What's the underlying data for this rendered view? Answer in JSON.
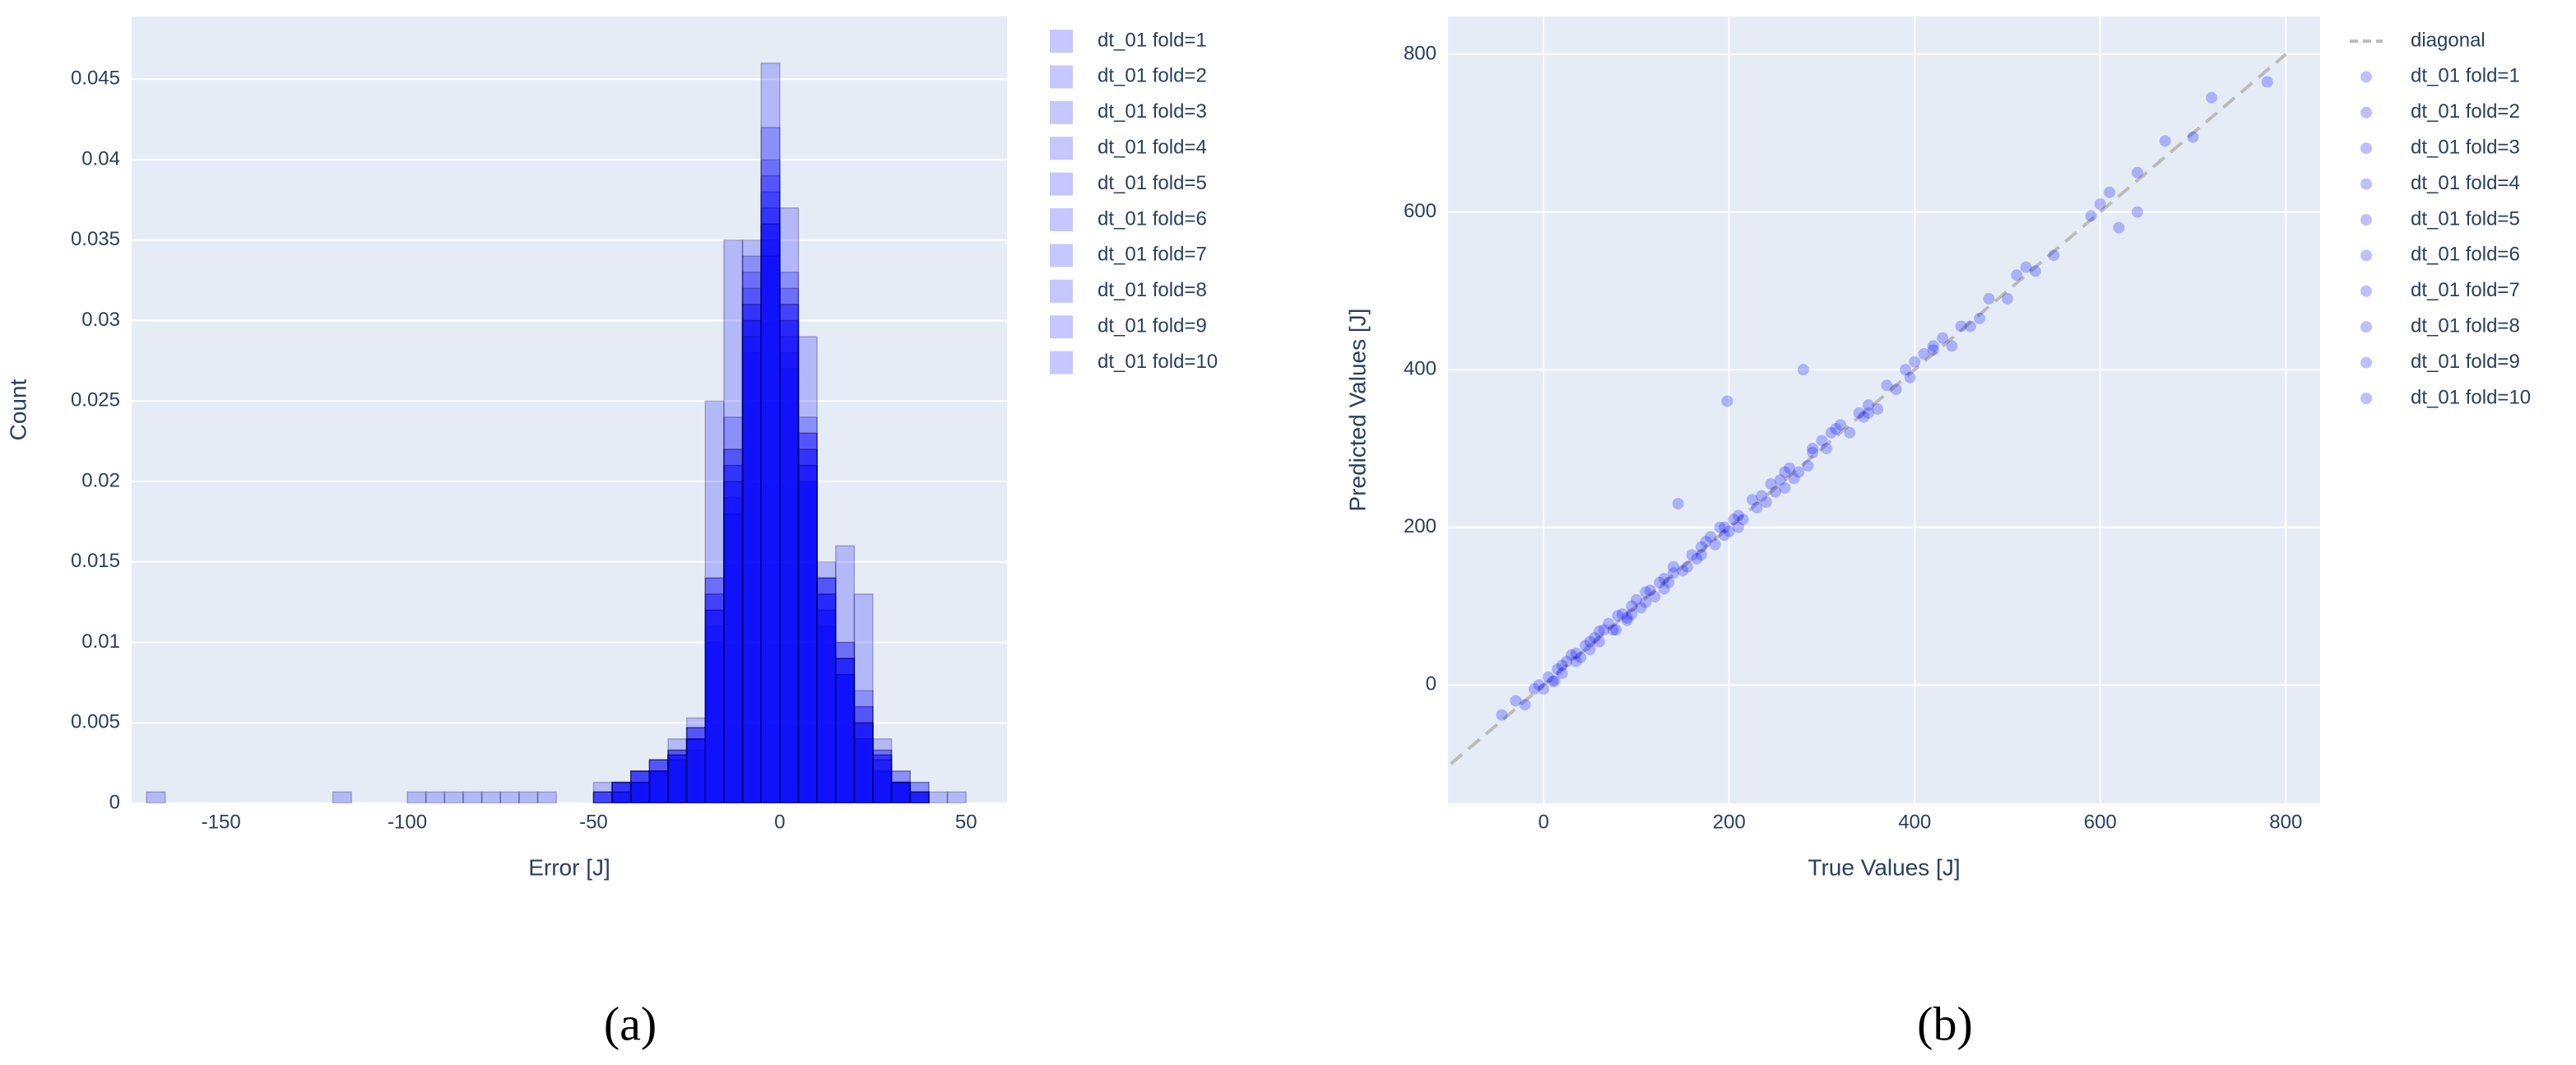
{
  "chart_data": [
    {
      "type": "histogram",
      "caption": "(a)",
      "xlabel": "Error [J]",
      "ylabel": "Count",
      "xlim": [
        -174,
        61
      ],
      "xticks": [
        -150,
        -100,
        -50,
        0,
        50
      ],
      "ylim": [
        0,
        0.0489
      ],
      "yticks": [
        0,
        0.005,
        0.01,
        0.015,
        0.02,
        0.025,
        0.03,
        0.035,
        0.04,
        0.045
      ],
      "xgrid": false,
      "ygrid": true,
      "bins": [
        -170,
        -165,
        -160,
        -155,
        -150,
        -145,
        -140,
        -135,
        -130,
        -125,
        -120,
        -115,
        -110,
        -105,
        -100,
        -95,
        -90,
        -85,
        -80,
        -75,
        -70,
        -65,
        -60,
        -55,
        -50,
        -45,
        -40,
        -35,
        -30,
        -25,
        -20,
        -15,
        -10,
        -5,
        0,
        5,
        10,
        15,
        20,
        25,
        30,
        35,
        40,
        45,
        50,
        55,
        60
      ],
      "series": [
        {
          "name": "dt_01 fold=1",
          "color": "rgba(0,0,255,0.22)",
          "values": [
            0.0007,
            0,
            0,
            0,
            0,
            0,
            0,
            0,
            0,
            0,
            0,
            0,
            0,
            0,
            0,
            0,
            0,
            0,
            0,
            0,
            0,
            0,
            0,
            0,
            0.0007,
            0.0013,
            0.0013,
            0.002,
            0.003,
            0.004,
            0.012,
            0.021,
            0.031,
            0.038,
            0.03,
            0.022,
            0.013,
            0.009,
            0.005,
            0.003,
            0.0013,
            0.0007,
            0,
            0,
            0,
            0
          ]
        },
        {
          "name": "dt_01 fold=2",
          "color": "rgba(0,0,255,0.22)",
          "values": [
            0,
            0,
            0,
            0,
            0,
            0,
            0,
            0,
            0,
            0,
            0.0007,
            0,
            0,
            0,
            0,
            0,
            0,
            0,
            0,
            0,
            0,
            0,
            0,
            0,
            0,
            0.0013,
            0.002,
            0.0027,
            0.0033,
            0.004,
            0.014,
            0.024,
            0.035,
            0.046,
            0.033,
            0.02,
            0.012,
            0.008,
            0.004,
            0.002,
            0.0013,
            0,
            0,
            0,
            0,
            0
          ]
        },
        {
          "name": "dt_01 fold=3",
          "color": "rgba(0,0,255,0.22)",
          "values": [
            0,
            0,
            0,
            0,
            0,
            0,
            0,
            0,
            0,
            0,
            0,
            0,
            0,
            0,
            0.0007,
            0.0007,
            0,
            0,
            0,
            0,
            0,
            0,
            0,
            0,
            0.0013,
            0.0007,
            0.002,
            0.002,
            0.0027,
            0.0047,
            0.01,
            0.019,
            0.028,
            0.035,
            0.037,
            0.024,
            0.014,
            0.01,
            0.006,
            0.003,
            0.0013,
            0.0007,
            0,
            0,
            0,
            0
          ]
        },
        {
          "name": "dt_01 fold=4",
          "color": "rgba(0,0,255,0.22)",
          "values": [
            0,
            0,
            0,
            0,
            0,
            0,
            0,
            0,
            0,
            0,
            0,
            0,
            0,
            0,
            0,
            0,
            0.0007,
            0.0007,
            0,
            0,
            0,
            0,
            0,
            0,
            0,
            0.0013,
            0.0013,
            0.0027,
            0.004,
            0.0053,
            0.025,
            0.022,
            0.033,
            0.04,
            0.028,
            0.021,
            0.015,
            0.016,
            0.007,
            0.0033,
            0.002,
            0.0013,
            0,
            0,
            0,
            0
          ]
        },
        {
          "name": "dt_01 fold=5",
          "color": "rgba(0,0,255,0.22)",
          "values": [
            0,
            0,
            0,
            0,
            0,
            0,
            0,
            0,
            0,
            0,
            0,
            0,
            0,
            0,
            0,
            0,
            0,
            0,
            0.0007,
            0.0007,
            0,
            0,
            0,
            0,
            0.0007,
            0,
            0.0013,
            0.002,
            0.0033,
            0.004,
            0.013,
            0.02,
            0.03,
            0.036,
            0.031,
            0.029,
            0.013,
            0.008,
            0.013,
            0.004,
            0.0013,
            0,
            0.0007,
            0,
            0,
            0
          ]
        },
        {
          "name": "dt_01 fold=6",
          "color": "rgba(0,0,255,0.22)",
          "values": [
            0,
            0,
            0,
            0,
            0,
            0,
            0,
            0,
            0,
            0,
            0,
            0,
            0,
            0,
            0,
            0,
            0,
            0,
            0,
            0,
            0.0007,
            0,
            0,
            0,
            0.0007,
            0.0013,
            0.002,
            0.002,
            0.003,
            0.0047,
            0.012,
            0.018,
            0.032,
            0.037,
            0.027,
            0.02,
            0.011,
            0.009,
            0.005,
            0.0027,
            0.0013,
            0.0007,
            0,
            0,
            0,
            0
          ]
        },
        {
          "name": "dt_01 fold=7",
          "color": "rgba(0,0,255,0.22)",
          "values": [
            0,
            0,
            0,
            0,
            0,
            0,
            0,
            0,
            0,
            0,
            0,
            0,
            0,
            0,
            0,
            0,
            0,
            0,
            0,
            0,
            0,
            0.0007,
            0,
            0,
            0,
            0.0007,
            0.002,
            0.0027,
            0.003,
            0.004,
            0.011,
            0.035,
            0.034,
            0.042,
            0.029,
            0.023,
            0.014,
            0.009,
            0.006,
            0.0033,
            0.0013,
            0.0013,
            0,
            0,
            0,
            0
          ]
        },
        {
          "name": "dt_01 fold=8",
          "color": "rgba(0,0,255,0.22)",
          "values": [
            0,
            0,
            0,
            0,
            0,
            0,
            0,
            0,
            0,
            0,
            0,
            0,
            0,
            0,
            0,
            0,
            0,
            0,
            0,
            0,
            0,
            0,
            0,
            0,
            0,
            0.0013,
            0.0013,
            0.002,
            0.0027,
            0.0033,
            0.013,
            0.021,
            0.029,
            0.034,
            0.032,
            0.022,
            0.012,
            0.01,
            0.004,
            0.002,
            0.002,
            0.0007,
            0,
            0.0007,
            0,
            0
          ]
        },
        {
          "name": "dt_01 fold=9",
          "color": "rgba(0,0,255,0.22)",
          "values": [
            0,
            0,
            0,
            0,
            0,
            0,
            0,
            0,
            0,
            0,
            0,
            0,
            0,
            0,
            0,
            0,
            0,
            0,
            0,
            0,
            0,
            0,
            0,
            0,
            0.0007,
            0.0007,
            0.0013,
            0.0027,
            0.0033,
            0.004,
            0.012,
            0.022,
            0.031,
            0.039,
            0.03,
            0.021,
            0.013,
            0.008,
            0.005,
            0.003,
            0.0013,
            0.0007,
            0,
            0,
            0,
            0
          ]
        },
        {
          "name": "dt_01 fold=10",
          "color": "rgba(0,0,255,0.22)",
          "values": [
            0,
            0,
            0,
            0,
            0,
            0,
            0,
            0,
            0,
            0,
            0,
            0,
            0,
            0,
            0,
            0,
            0,
            0,
            0,
            0,
            0,
            0,
            0,
            0,
            0,
            0.0013,
            0.002,
            0.002,
            0.003,
            0.0047,
            0.014,
            0.02,
            0.03,
            0.036,
            0.031,
            0.023,
            0.014,
            0.009,
            0.005,
            0.0027,
            0.0013,
            0.0007,
            0,
            0,
            0,
            0
          ]
        }
      ]
    },
    {
      "type": "scatter",
      "caption": "(b)",
      "xlabel": "True Values [J]",
      "ylabel": "Predicted Values [J]",
      "xlim": [
        -103,
        837
      ],
      "xticks": [
        0,
        200,
        400,
        600,
        800
      ],
      "ylim": [
        -150,
        848
      ],
      "yticks": [
        0,
        200,
        400,
        600,
        800
      ],
      "xgrid": true,
      "ygrid": true,
      "series": [
        {
          "name": "diagonal",
          "mode": "lines",
          "color": "#bbbbbb",
          "x": [
            -100,
            800
          ],
          "values": [
            -100,
            800
          ]
        },
        {
          "name": "dt_01 fold=1",
          "mode": "markers",
          "color": "rgba(0,0,255,0.25)",
          "x": [
            -45,
            12,
            35,
            78,
            110,
            150,
            190,
            240,
            290,
            350,
            420,
            780
          ],
          "values": [
            -38,
            5,
            40,
            70,
            118,
            145,
            200,
            232,
            300,
            345,
            430,
            765
          ]
        },
        {
          "name": "dt_01 fold=2",
          "mode": "markers",
          "color": "rgba(0,0,255,0.25)",
          "x": [
            -20,
            25,
            60,
            95,
            130,
            175,
            210,
            260,
            330,
            390,
            470,
            600
          ],
          "values": [
            -25,
            30,
            55,
            100,
            122,
            182,
            200,
            270,
            320,
            400,
            465,
            610
          ]
        },
        {
          "name": "dt_01 fold=3",
          "mode": "markers",
          "color": "rgba(0,0,255,0.25)",
          "x": [
            -10,
            40,
            70,
            105,
            140,
            185,
            225,
            270,
            310,
            440,
            520,
            640
          ],
          "values": [
            -5,
            35,
            78,
            98,
            150,
            178,
            235,
            262,
            320,
            430,
            530,
            600
          ]
        },
        {
          "name": "dt_01 fold=4",
          "mode": "markers",
          "color": "rgba(0,0,255,0.25)",
          "x": [
            5,
            50,
            85,
            120,
            160,
            195,
            250,
            300,
            360,
            400,
            500,
            700
          ],
          "values": [
            10,
            45,
            90,
            112,
            165,
            200,
            245,
            310,
            350,
            410,
            490,
            695
          ]
        },
        {
          "name": "dt_01 fold=5",
          "mode": "markers",
          "color": "rgba(0,0,255,0.25)",
          "x": [
            15,
            55,
            90,
            125,
            145,
            200,
            245,
            285,
            340,
            430,
            550,
            670
          ],
          "values": [
            20,
            60,
            85,
            130,
            230,
            195,
            255,
            278,
            345,
            440,
            545,
            690
          ]
        },
        {
          "name": "dt_01 fold=6",
          "mode": "markers",
          "color": "rgba(0,0,255,0.25)",
          "x": [
            -30,
            20,
            65,
            100,
            135,
            170,
            215,
            280,
            320,
            380,
            480,
            620
          ],
          "values": [
            -20,
            15,
            70,
            108,
            130,
            175,
            210,
            400,
            330,
            375,
            490,
            580
          ]
        },
        {
          "name": "dt_01 fold=7",
          "mode": "markers",
          "color": "rgba(0,0,255,0.25)",
          "x": [
            0,
            30,
            75,
            115,
            155,
            195,
            198,
            260,
            350,
            410,
            460,
            590
          ],
          "values": [
            -5,
            38,
            70,
            120,
            150,
            190,
            360,
            250,
            355,
            420,
            455,
            595
          ]
        },
        {
          "name": "dt_01 fold=8",
          "mode": "markers",
          "color": "rgba(0,0,255,0.25)",
          "x": [
            10,
            45,
            80,
            110,
            165,
            205,
            235,
            275,
            315,
            370,
            510,
            640
          ],
          "values": [
            5,
            50,
            88,
            105,
            160,
            210,
            240,
            270,
            325,
            380,
            520,
            650
          ]
        },
        {
          "name": "dt_01 fold=9",
          "mode": "markers",
          "color": "rgba(0,0,255,0.25)",
          "x": [
            -5,
            35,
            60,
            95,
            140,
            180,
            230,
            265,
            305,
            395,
            450,
            720
          ],
          "values": [
            0,
            30,
            68,
            90,
            142,
            188,
            225,
            275,
            300,
            390,
            455,
            745
          ]
        },
        {
          "name": "dt_01 fold=10",
          "mode": "markers",
          "color": "rgba(0,0,255,0.25)",
          "x": [
            20,
            50,
            90,
            130,
            170,
            210,
            255,
            290,
            345,
            420,
            530,
            610
          ],
          "values": [
            25,
            55,
            82,
            135,
            165,
            215,
            260,
            295,
            340,
            425,
            525,
            625
          ]
        }
      ]
    }
  ]
}
